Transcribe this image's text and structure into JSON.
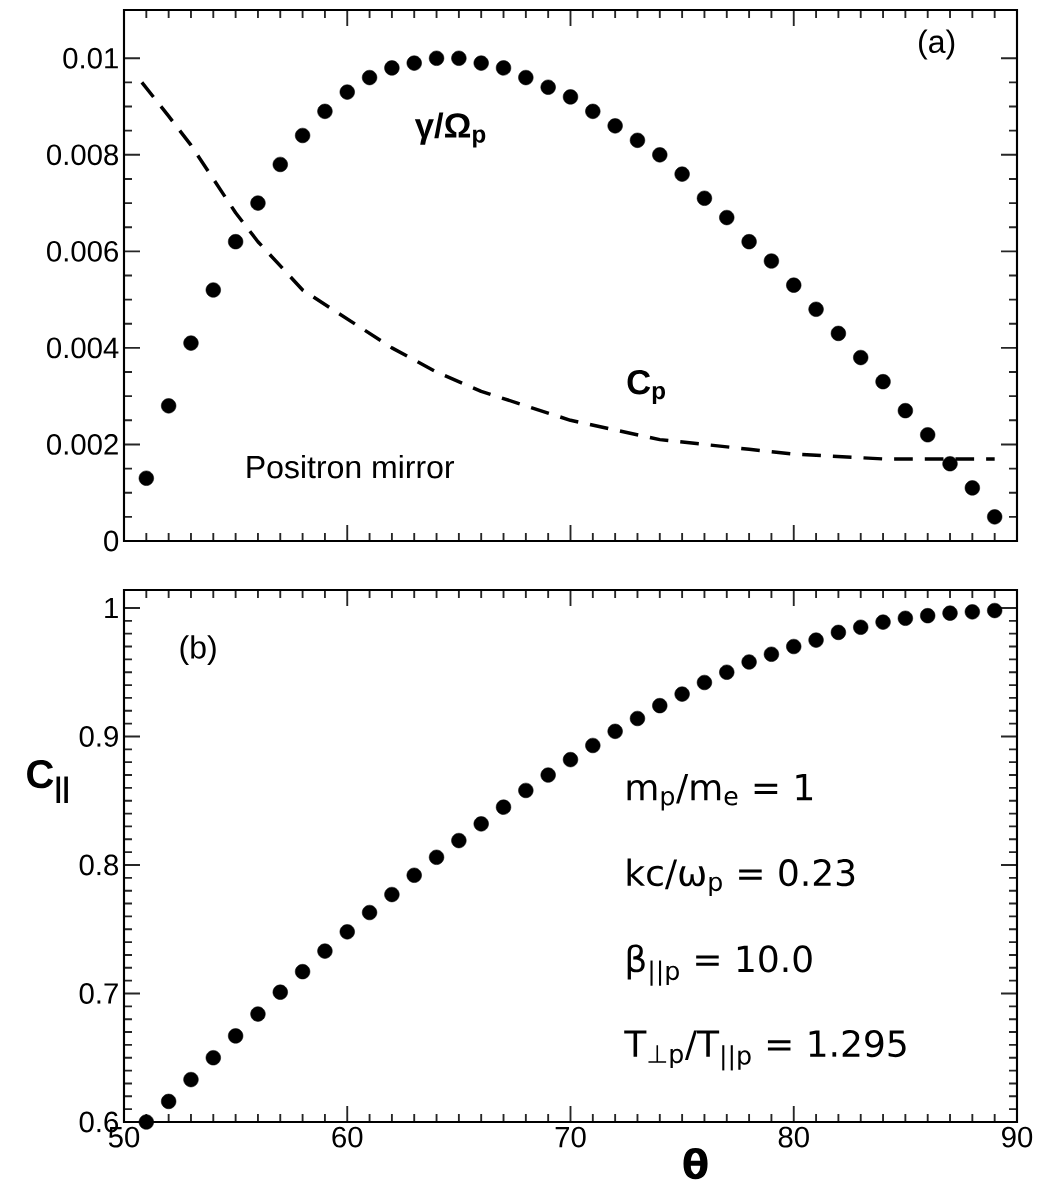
{
  "chart_data": [
    {
      "type": "scatter",
      "marker": "circle",
      "x": [
        51,
        52,
        53,
        54,
        55,
        56,
        57,
        58,
        59,
        60,
        61,
        62,
        63,
        64,
        65,
        66,
        67,
        68,
        69,
        70,
        71,
        72,
        73,
        74,
        75,
        76,
        77,
        78,
        79,
        80,
        81,
        82,
        83,
        84,
        85,
        86,
        87,
        88,
        89
      ],
      "series": [
        {
          "name": "γ/Ω$_{p}$",
          "color": "#000000",
          "values": [
            0.0013,
            0.0028,
            0.0041,
            0.0052,
            0.0062,
            0.007,
            0.0078,
            0.0084,
            0.0089,
            0.0093,
            0.0096,
            0.0098,
            0.0099,
            0.01,
            0.01,
            0.0099,
            0.0098,
            0.0096,
            0.0094,
            0.0092,
            0.0089,
            0.0086,
            0.0083,
            0.008,
            0.0076,
            0.0071,
            0.0067,
            0.0062,
            0.0058,
            0.0053,
            0.0048,
            0.0043,
            0.0038,
            0.0033,
            0.0027,
            0.0022,
            0.0016,
            0.0011,
            0.0005
          ]
        },
        {
          "name": "C$_{p}$",
          "type": "line",
          "marker": "none",
          "line_style": "dashed",
          "color": "#000000",
          "x": [
            50.8,
            52,
            53,
            54,
            55,
            56,
            57,
            58,
            60,
            62,
            64,
            66,
            68,
            70,
            72,
            74,
            76,
            78,
            80,
            84,
            87,
            89
          ],
          "values": [
            0.0095,
            0.0088,
            0.0082,
            0.0075,
            0.0068,
            0.0062,
            0.0057,
            0.0052,
            0.0046,
            0.004,
            0.0035,
            0.0031,
            0.0028,
            0.0025,
            0.0023,
            0.0021,
            0.002,
            0.0019,
            0.0018,
            0.0017,
            0.0017,
            0.0017
          ]
        }
      ],
      "xlim": [
        50,
        90
      ],
      "xticks": [
        50,
        60,
        70,
        80,
        90
      ],
      "ylim": [
        0,
        0.011
      ],
      "yticks": [
        0,
        0.002,
        0.004,
        0.006,
        0.008,
        0.01
      ],
      "tick_labels": "y",
      "annotations": [
        "(a)",
        "Positron mirror"
      ]
    },
    {
      "type": "scatter",
      "marker": "circle",
      "xlabel": "θ",
      "ylabel": "C$_{||}$",
      "x": [
        51,
        52,
        53,
        54,
        55,
        56,
        57,
        58,
        59,
        60,
        61,
        62,
        63,
        64,
        65,
        66,
        67,
        68,
        69,
        70,
        71,
        72,
        73,
        74,
        75,
        76,
        77,
        78,
        79,
        80,
        81,
        82,
        83,
        84,
        85,
        86,
        87,
        88,
        89
      ],
      "series": [
        {
          "color": "#000000",
          "values": [
            0.6,
            0.616,
            0.633,
            0.65,
            0.667,
            0.684,
            0.701,
            0.717,
            0.733,
            0.748,
            0.763,
            0.777,
            0.792,
            0.806,
            0.819,
            0.832,
            0.845,
            0.858,
            0.87,
            0.882,
            0.893,
            0.904,
            0.914,
            0.924,
            0.933,
            0.942,
            0.95,
            0.958,
            0.964,
            0.97,
            0.975,
            0.981,
            0.985,
            0.989,
            0.992,
            0.994,
            0.996,
            0.997,
            0.998
          ]
        }
      ],
      "xlim": [
        50,
        90
      ],
      "xticks": [
        50,
        60,
        70,
        80,
        90
      ],
      "ylim": [
        0.6,
        1.014
      ],
      "yticks": [
        0.6,
        0.7,
        0.8,
        0.9,
        1
      ],
      "annotations": [
        "(b)",
        "m$_{p}$/m$_{e}$ = 1",
        "kc/ω$_{p}$ = 0.23",
        "β$_{||p}$ = 10.0",
        "T$_{⊥p}$/T$_{||p}$ = 1.295"
      ]
    }
  ]
}
